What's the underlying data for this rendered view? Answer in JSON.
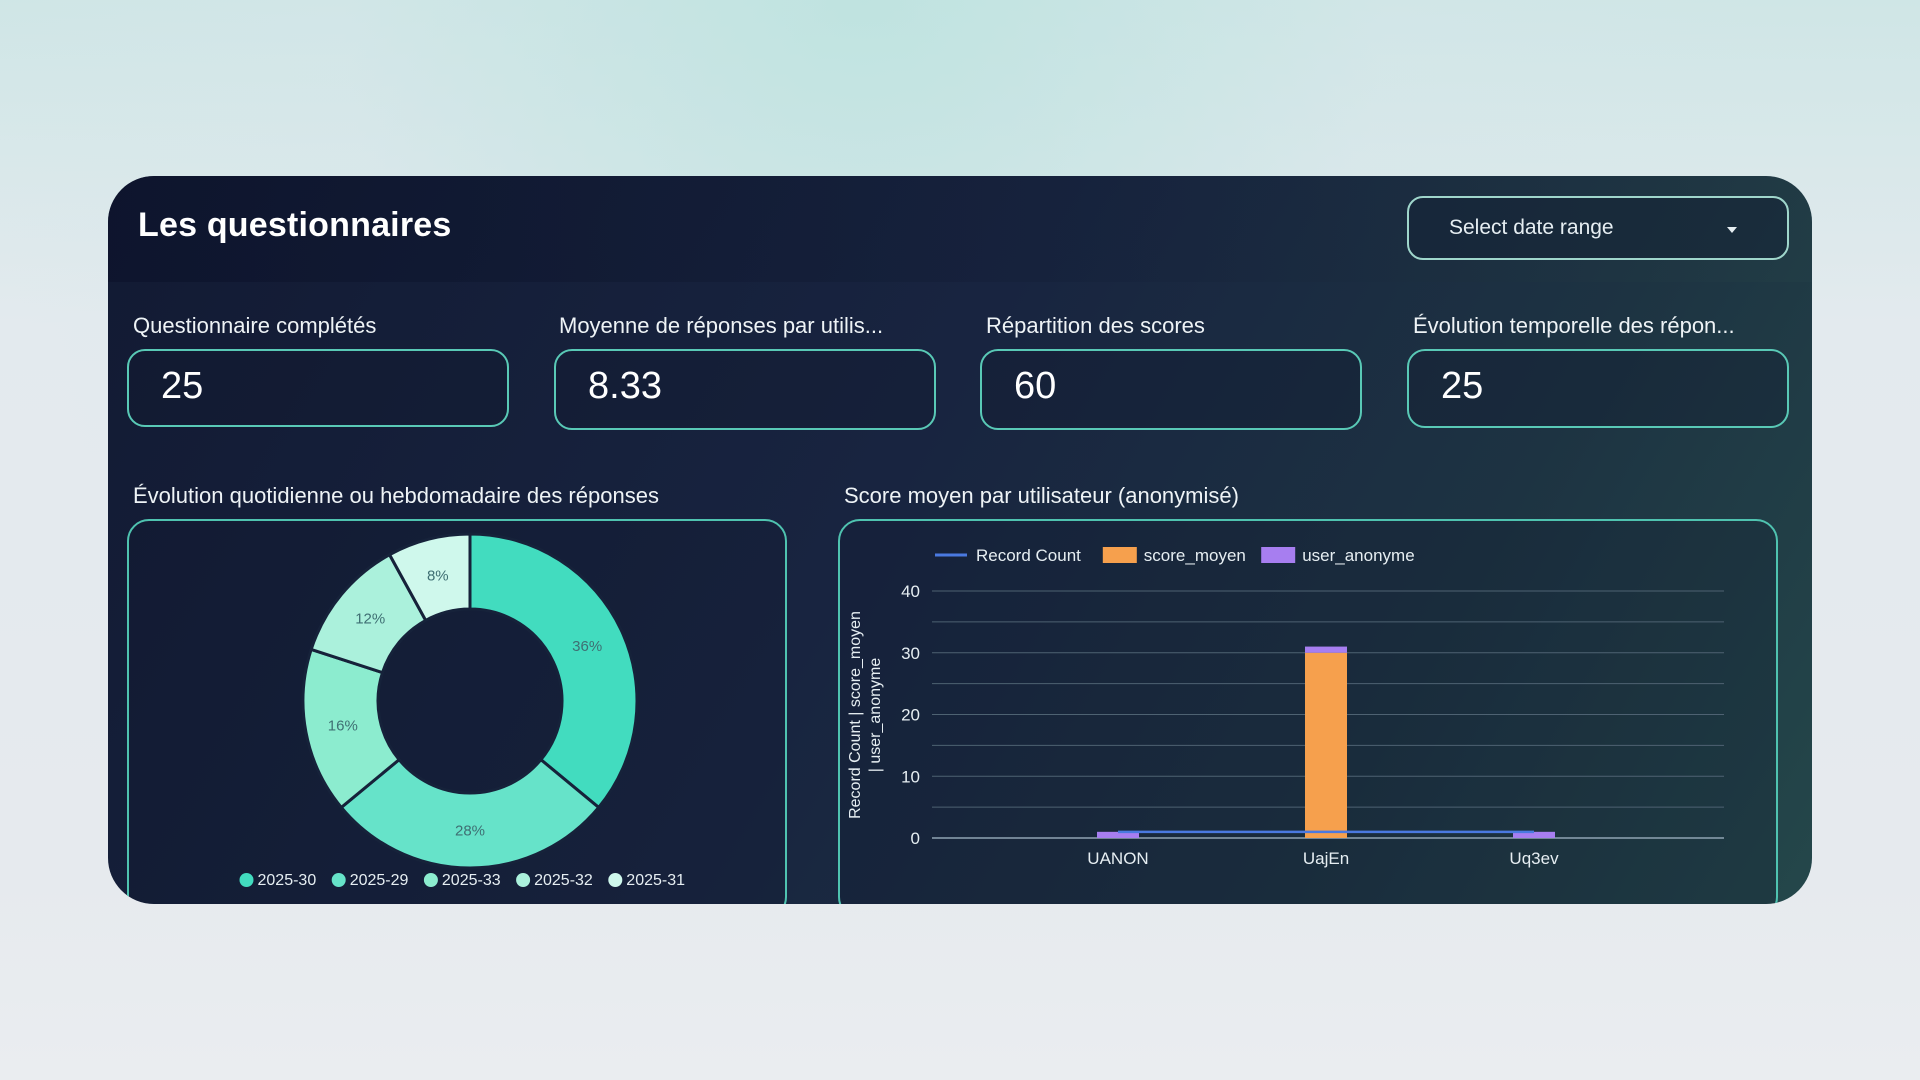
{
  "dashboard": {
    "title": "Les questionnaires",
    "date_range": {
      "placeholder": "Select date range"
    }
  },
  "kpis": [
    {
      "label": "Questionnaire complétés",
      "value": "25"
    },
    {
      "label": "Moyenne de réponses par utilis...",
      "value": "8.33"
    },
    {
      "label": "Répartition des scores",
      "value": "60"
    },
    {
      "label": "Évolution temporelle des répon...",
      "value": "25"
    }
  ],
  "donut_section": {
    "title": "Évolution quotidienne ou hebdomadaire des réponses"
  },
  "bar_section": {
    "title": "Score moyen par utilisateur (anonymisé)"
  },
  "colors": {
    "accent": "#4fc3b0",
    "orange": "#f6a04d",
    "purple": "#a77ef0",
    "line": "#4a79e0"
  },
  "chart_data": [
    {
      "type": "pie",
      "donut": true,
      "categories": [
        "2025-30",
        "2025-29",
        "2025-33",
        "2025-32",
        "2025-31"
      ],
      "values": [
        36,
        28,
        16,
        12,
        8
      ],
      "value_labels": [
        "36%",
        "28%",
        "16%",
        "12%",
        "8%"
      ],
      "colors": [
        "#42dcbf",
        "#66e3c9",
        "#8ceccf",
        "#abf1dc",
        "#cff8ec"
      ],
      "legend": "bottom"
    },
    {
      "type": "bar",
      "stacked": true,
      "categories": [
        "UANON",
        "UajEn",
        "Uq3ev"
      ],
      "ylabel": "Record Count | score_moyen | user_anonyme",
      "ylim": [
        0,
        40
      ],
      "yticks": [
        "0",
        "10",
        "20",
        "30",
        "40"
      ],
      "grid": true,
      "legend": "top-left",
      "series": [
        {
          "name": "Record Count",
          "kind": "line",
          "color": "#4a79e0",
          "values": [
            1,
            1,
            1
          ]
        },
        {
          "name": "score_moyen",
          "kind": "bar",
          "color": "#f6a04d",
          "values": [
            0,
            30,
            0
          ]
        },
        {
          "name": "user_anonyme",
          "kind": "bar",
          "color": "#a77ef0",
          "values": [
            1,
            1,
            1
          ]
        }
      ]
    }
  ]
}
